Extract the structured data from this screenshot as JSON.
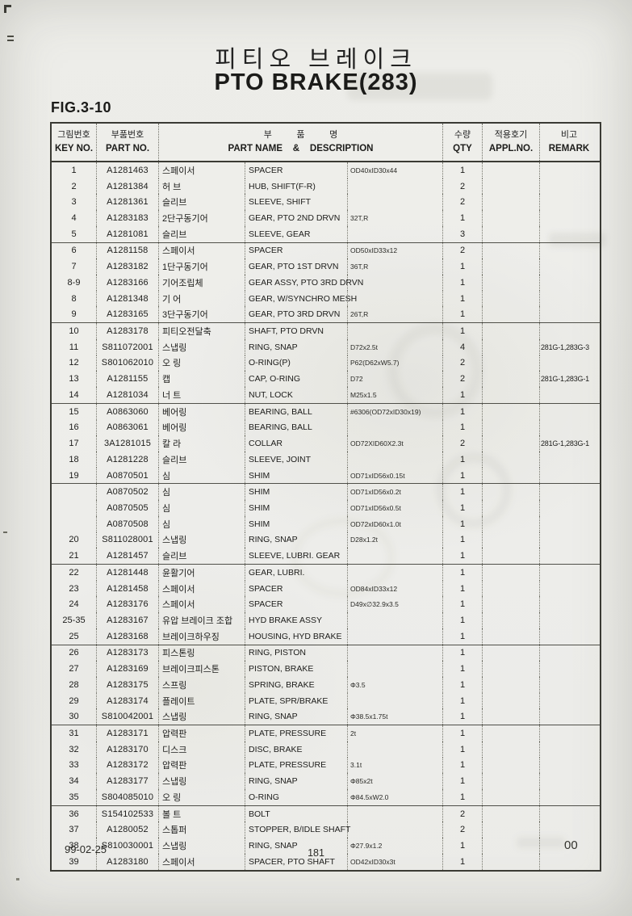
{
  "page": {
    "title_ko": "피티오 브레이크",
    "title_en": "PTO BRAKE(283)",
    "figure_label": "FIG.3-10",
    "footer": {
      "date": "99-02-25",
      "page_number": "181",
      "revision": "00"
    }
  },
  "table": {
    "headers": {
      "key_no_ko": "그림번호",
      "key_no_en": "KEY NO.",
      "part_no_ko": "부품번호",
      "part_no_en": "PART NO.",
      "part_name_ko": "부          품          명",
      "part_name_en": "PART NAME    &    DESCRIPTION",
      "qty_ko": "수량",
      "qty_en": "QTY",
      "appl_no_ko": "적용호기",
      "appl_no_en": "APPL.NO.",
      "remark_ko": "비고",
      "remark_en": "REMARK"
    },
    "rows": [
      {
        "key": "1",
        "part_no": "A1281463",
        "name_ko": "스페이서",
        "name_en": "SPACER",
        "spec": "OD40xID30x44",
        "qty": "1",
        "appl": "",
        "remark": "",
        "group_end": false
      },
      {
        "key": "2",
        "part_no": "A1281384",
        "name_ko": "허 브",
        "name_en": "HUB, SHIFT(F-R)",
        "spec": "",
        "qty": "2",
        "appl": "",
        "remark": "",
        "group_end": false
      },
      {
        "key": "3",
        "part_no": "A1281361",
        "name_ko": "슬리브",
        "name_en": "SLEEVE, SHIFT",
        "spec": "",
        "qty": "2",
        "appl": "",
        "remark": "",
        "group_end": false
      },
      {
        "key": "4",
        "part_no": "A1283183",
        "name_ko": "2단구동기어",
        "name_en": "GEAR, PTO 2ND DRVN",
        "spec": "32T,R",
        "qty": "1",
        "appl": "",
        "remark": "",
        "group_end": false
      },
      {
        "key": "5",
        "part_no": "A1281081",
        "name_ko": "슬리브",
        "name_en": "SLEEVE, GEAR",
        "spec": "",
        "qty": "3",
        "appl": "",
        "remark": "",
        "group_end": true
      },
      {
        "key": "6",
        "part_no": "A1281158",
        "name_ko": "스페이서",
        "name_en": "SPACER",
        "spec": "OD50xID33x12",
        "qty": "2",
        "appl": "",
        "remark": "",
        "group_end": false
      },
      {
        "key": "7",
        "part_no": "A1283182",
        "name_ko": "1단구동기어",
        "name_en": "GEAR, PTO 1ST DRVN",
        "spec": "36T,R",
        "qty": "1",
        "appl": "",
        "remark": "",
        "group_end": false
      },
      {
        "key": "8-9",
        "part_no": "A1283166",
        "name_ko": "기어조립체",
        "name_en": "GEAR ASSY, PTO 3RD DRVN",
        "spec": "",
        "qty": "1",
        "appl": "",
        "remark": "",
        "group_end": false
      },
      {
        "key": "8",
        "part_no": "A1281348",
        "name_ko": "기 어",
        "name_en": "GEAR, W/SYNCHRO MESH",
        "spec": "",
        "qty": "1",
        "appl": "",
        "remark": "",
        "group_end": false
      },
      {
        "key": "9",
        "part_no": "A1283165",
        "name_ko": "3단구동기어",
        "name_en": "GEAR, PTO 3RD DRVN",
        "spec": "26T,R",
        "qty": "1",
        "appl": "",
        "remark": "",
        "group_end": true
      },
      {
        "key": "10",
        "part_no": "A1283178",
        "name_ko": "피티오전달축",
        "name_en": "SHAFT, PTO DRVN",
        "spec": "",
        "qty": "1",
        "appl": "",
        "remark": "",
        "group_end": false
      },
      {
        "key": "11",
        "part_no": "S811072001",
        "name_ko": "스냅링",
        "name_en": "RING, SNAP",
        "spec": "D72x2.5t",
        "qty": "4",
        "appl": "",
        "remark": "281G-1,283G-3",
        "group_end": false
      },
      {
        "key": "12",
        "part_no": "S801062010",
        "name_ko": "오 링",
        "name_en": "O-RING(P)",
        "spec": "P62(D62xW5.7)",
        "qty": "2",
        "appl": "",
        "remark": "",
        "group_end": false
      },
      {
        "key": "13",
        "part_no": "A1281155",
        "name_ko": "캡",
        "name_en": "CAP, O-RING",
        "spec": "D72",
        "qty": "2",
        "appl": "",
        "remark": "281G-1,283G-1",
        "group_end": false
      },
      {
        "key": "14",
        "part_no": "A1281034",
        "name_ko": "너 트",
        "name_en": "NUT, LOCK",
        "spec": "M25x1.5",
        "qty": "1",
        "appl": "",
        "remark": "",
        "group_end": true
      },
      {
        "key": "15",
        "part_no": "A0863060",
        "name_ko": "베어링",
        "name_en": "BEARING, BALL",
        "spec": "#6306(OD72xID30x19)",
        "qty": "1",
        "appl": "",
        "remark": "",
        "group_end": false
      },
      {
        "key": "16",
        "part_no": "A0863061",
        "name_ko": "베어링",
        "name_en": "BEARING, BALL",
        "spec": "",
        "qty": "1",
        "appl": "",
        "remark": "",
        "group_end": false
      },
      {
        "key": "17",
        "part_no": "3A1281015",
        "name_ko": "칼 라",
        "name_en": "COLLAR",
        "spec": "OD72XID60X2.3t",
        "qty": "2",
        "appl": "",
        "remark": "281G-1,283G-1",
        "group_end": false
      },
      {
        "key": "18",
        "part_no": "A1281228",
        "name_ko": "슬리브",
        "name_en": "SLEEVE, JOINT",
        "spec": "",
        "qty": "1",
        "appl": "",
        "remark": "",
        "group_end": false
      },
      {
        "key": "19",
        "part_no": "A0870501",
        "name_ko": "심",
        "name_en": "SHIM",
        "spec": "OD71xID56x0.15t",
        "qty": "1",
        "appl": "",
        "remark": "",
        "group_end": true
      },
      {
        "key": "",
        "part_no": "A0870502",
        "name_ko": "심",
        "name_en": "SHIM",
        "spec": "OD71xID56x0.2t",
        "qty": "1",
        "appl": "",
        "remark": "",
        "group_end": false
      },
      {
        "key": "",
        "part_no": "A0870505",
        "name_ko": "심",
        "name_en": "SHIM",
        "spec": "OD71xID56x0.5t",
        "qty": "1",
        "appl": "",
        "remark": "",
        "group_end": false
      },
      {
        "key": "",
        "part_no": "A0870508",
        "name_ko": "심",
        "name_en": "SHIM",
        "spec": "OD72xID60x1.0t",
        "qty": "1",
        "appl": "",
        "remark": "",
        "group_end": false
      },
      {
        "key": "20",
        "part_no": "S811028001",
        "name_ko": "스냅링",
        "name_en": "RING, SNAP",
        "spec": "D28x1.2t",
        "qty": "1",
        "appl": "",
        "remark": "",
        "group_end": false
      },
      {
        "key": "21",
        "part_no": "A1281457",
        "name_ko": "슬리브",
        "name_en": "SLEEVE, LUBRI. GEAR",
        "spec": "",
        "qty": "1",
        "appl": "",
        "remark": "",
        "group_end": true
      },
      {
        "key": "22",
        "part_no": "A1281448",
        "name_ko": "윤활기어",
        "name_en": "GEAR, LUBRI.",
        "spec": "",
        "qty": "1",
        "appl": "",
        "remark": "",
        "group_end": false
      },
      {
        "key": "23",
        "part_no": "A1281458",
        "name_ko": "스페이서",
        "name_en": "SPACER",
        "spec": "OD84xID33x12",
        "qty": "1",
        "appl": "",
        "remark": "",
        "group_end": false
      },
      {
        "key": "24",
        "part_no": "A1283176",
        "name_ko": "스페이서",
        "name_en": "SPACER",
        "spec": "D49x∅32.9x3.5",
        "qty": "1",
        "appl": "",
        "remark": "",
        "group_end": false
      },
      {
        "key": "25-35",
        "part_no": "A1283167",
        "name_ko": "유압 브레이크 조합",
        "name_en": "HYD BRAKE ASSY",
        "spec": "",
        "qty": "1",
        "appl": "",
        "remark": "",
        "group_end": false
      },
      {
        "key": "25",
        "part_no": "A1283168",
        "name_ko": "브레이크하우징",
        "name_en": "HOUSING, HYD BRAKE",
        "spec": "",
        "qty": "1",
        "appl": "",
        "remark": "",
        "group_end": true
      },
      {
        "key": "26",
        "part_no": "A1283173",
        "name_ko": "피스톤링",
        "name_en": "RING, PISTON",
        "spec": "",
        "qty": "1",
        "appl": "",
        "remark": "",
        "group_end": false
      },
      {
        "key": "27",
        "part_no": "A1283169",
        "name_ko": "브레이크피스톤",
        "name_en": "PISTON, BRAKE",
        "spec": "",
        "qty": "1",
        "appl": "",
        "remark": "",
        "group_end": false
      },
      {
        "key": "28",
        "part_no": "A1283175",
        "name_ko": "스프링",
        "name_en": "SPRING, BRAKE",
        "spec": "Φ3.5",
        "qty": "1",
        "appl": "",
        "remark": "",
        "group_end": false
      },
      {
        "key": "29",
        "part_no": "A1283174",
        "name_ko": "플레이트",
        "name_en": "PLATE, SPR/BRAKE",
        "spec": "",
        "qty": "1",
        "appl": "",
        "remark": "",
        "group_end": false
      },
      {
        "key": "30",
        "part_no": "S810042001",
        "name_ko": "스냅링",
        "name_en": "RING, SNAP",
        "spec": "Φ38.5x1.75t",
        "qty": "1",
        "appl": "",
        "remark": "",
        "group_end": true
      },
      {
        "key": "31",
        "part_no": "A1283171",
        "name_ko": "압력판",
        "name_en": "PLATE, PRESSURE",
        "spec": "2t",
        "qty": "1",
        "appl": "",
        "remark": "",
        "group_end": false
      },
      {
        "key": "32",
        "part_no": "A1283170",
        "name_ko": "디스크",
        "name_en": "DISC, BRAKE",
        "spec": "",
        "qty": "1",
        "appl": "",
        "remark": "",
        "group_end": false
      },
      {
        "key": "33",
        "part_no": "A1283172",
        "name_ko": "압력판",
        "name_en": "PLATE, PRESSURE",
        "spec": "3.1t",
        "qty": "1",
        "appl": "",
        "remark": "",
        "group_end": false
      },
      {
        "key": "34",
        "part_no": "A1283177",
        "name_ko": "스냅링",
        "name_en": "RING, SNAP",
        "spec": "Φ85x2t",
        "qty": "1",
        "appl": "",
        "remark": "",
        "group_end": false
      },
      {
        "key": "35",
        "part_no": "S804085010",
        "name_ko": "오 링",
        "name_en": "O-RING",
        "spec": "Φ84.5xW2.0",
        "qty": "1",
        "appl": "",
        "remark": "",
        "group_end": true
      },
      {
        "key": "36",
        "part_no": "S154102533",
        "name_ko": "볼 트",
        "name_en": "BOLT",
        "spec": "",
        "qty": "2",
        "appl": "",
        "remark": "",
        "group_end": false
      },
      {
        "key": "37",
        "part_no": "A1280052",
        "name_ko": "스톱퍼",
        "name_en": "STOPPER, B/IDLE SHAFT",
        "spec": "",
        "qty": "2",
        "appl": "",
        "remark": "",
        "group_end": false
      },
      {
        "key": "38",
        "part_no": "S810030001",
        "name_ko": "스냅링",
        "name_en": "RING, SNAP",
        "spec": "Φ27.9x1.2",
        "qty": "1",
        "appl": "",
        "remark": "",
        "group_end": false
      },
      {
        "key": "39",
        "part_no": "A1283180",
        "name_ko": "스페이서",
        "name_en": "SPACER, PTO SHAFT",
        "spec": "OD42xID30x3t",
        "qty": "1",
        "appl": "",
        "remark": "",
        "group_end": false
      }
    ]
  }
}
